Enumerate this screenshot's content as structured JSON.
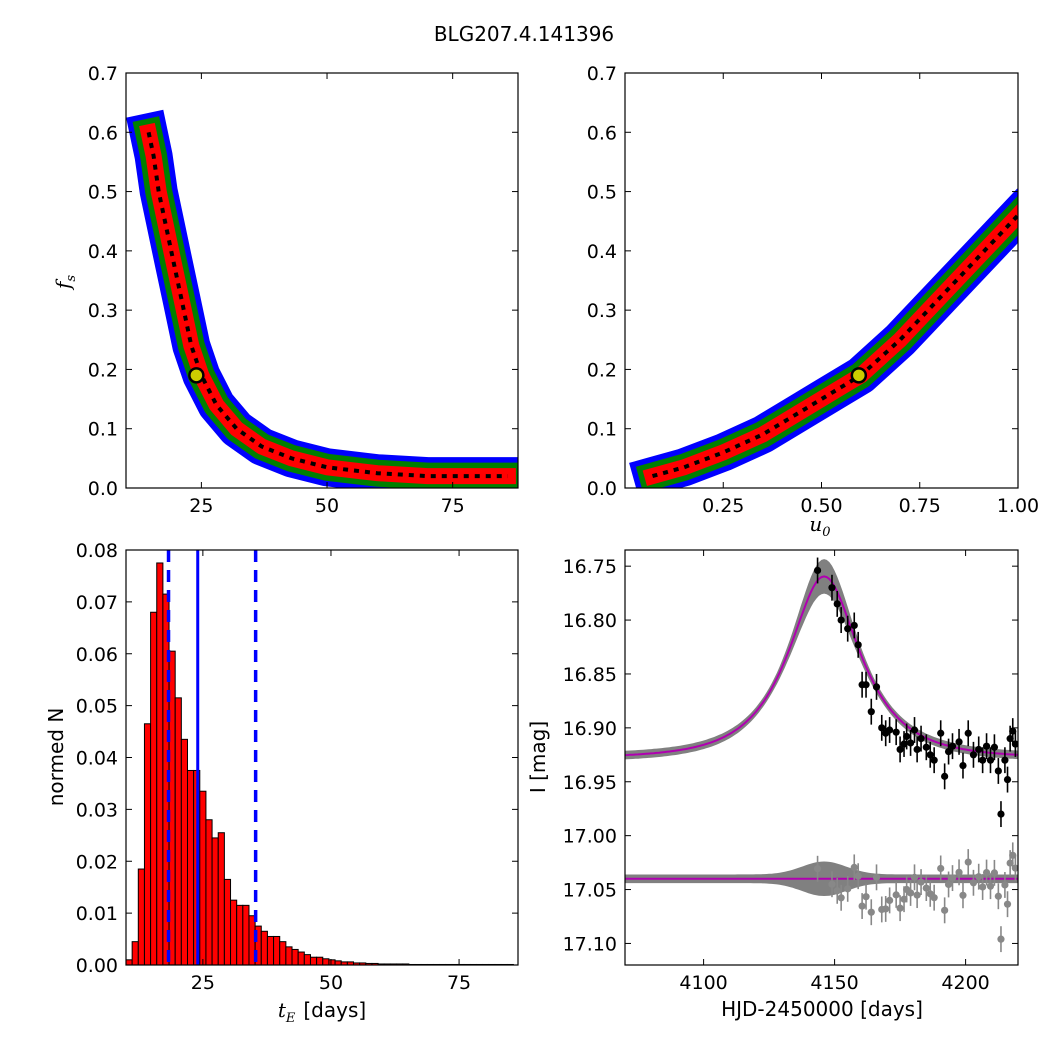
{
  "figure": {
    "title": "BLG207.4.141396"
  },
  "chart_data": [
    {
      "panel": "top-left",
      "type": "heatmap",
      "title": "",
      "xlabel": "",
      "ylabel_symbol": "f",
      "ylabel_sub": "s",
      "xlim": [
        10,
        88
      ],
      "ylim": [
        0,
        0.7
      ],
      "xticks": [
        "25",
        "50",
        "75"
      ],
      "xtick_values": [
        25,
        50,
        75
      ],
      "yticks": [
        "0.0",
        "0.1",
        "0.2",
        "0.3",
        "0.4",
        "0.5",
        "0.6",
        "0.7"
      ],
      "ytick_values": [
        0,
        0.1,
        0.2,
        0.3,
        0.4,
        0.5,
        0.6,
        0.7
      ],
      "band_colors": {
        "outer": "#0000ff",
        "middle": "#007f00",
        "inner": "#ff0000",
        "peak": "#000000"
      },
      "ridge": [
        [
          14.5,
          0.6
        ],
        [
          15.5,
          0.56
        ],
        [
          16.5,
          0.5
        ],
        [
          18,
          0.44
        ],
        [
          19.5,
          0.38
        ],
        [
          21,
          0.32
        ],
        [
          23,
          0.24
        ],
        [
          25,
          0.19
        ],
        [
          28,
          0.14
        ],
        [
          32,
          0.1
        ],
        [
          37,
          0.07
        ],
        [
          43,
          0.05
        ],
        [
          50,
          0.035
        ],
        [
          60,
          0.025
        ],
        [
          70,
          0.02
        ],
        [
          86,
          0.02
        ]
      ],
      "best_fit": {
        "x": 24,
        "y": 0.19
      },
      "best_fit_color": "#cccc00"
    },
    {
      "panel": "top-right",
      "type": "heatmap",
      "title": "",
      "xlabel_symbol": "u",
      "xlabel_sub": "0",
      "ylabel": "",
      "xlim": [
        0,
        1.0
      ],
      "ylim": [
        0,
        0.7
      ],
      "xticks": [
        "0.25",
        "0.50",
        "0.75",
        "1.00"
      ],
      "xtick_values": [
        0.25,
        0.5,
        0.75,
        1.0
      ],
      "yticks": [
        "0.0",
        "0.1",
        "0.2",
        "0.3",
        "0.4",
        "0.5",
        "0.6",
        "0.7"
      ],
      "ytick_values": [
        0,
        0.1,
        0.2,
        0.3,
        0.4,
        0.5,
        0.6,
        0.7
      ],
      "band_colors": {
        "outer": "#0000ff",
        "middle": "#007f00",
        "inner": "#ff0000",
        "peak": "#000000"
      },
      "ridge": [
        [
          0.07,
          0.02
        ],
        [
          0.15,
          0.035
        ],
        [
          0.25,
          0.06
        ],
        [
          0.35,
          0.09
        ],
        [
          0.45,
          0.13
        ],
        [
          0.55,
          0.17
        ],
        [
          0.6,
          0.19
        ],
        [
          0.7,
          0.25
        ],
        [
          0.8,
          0.32
        ],
        [
          0.9,
          0.39
        ],
        [
          1.0,
          0.46
        ]
      ],
      "best_fit": {
        "x": 0.595,
        "y": 0.19
      },
      "best_fit_color": "#cccc00"
    },
    {
      "panel": "bottom-left",
      "type": "bar",
      "title": "",
      "xlabel_symbol": "t",
      "xlabel_sub": "E",
      "xlabel_unit": "[days]",
      "ylabel": "normed N",
      "xlim": [
        10,
        86.5
      ],
      "ylim": [
        0,
        0.08
      ],
      "xticks": [
        "25",
        "50",
        "75"
      ],
      "xtick_values": [
        25,
        50,
        75
      ],
      "yticks": [
        "0.00",
        "0.01",
        "0.02",
        "0.03",
        "0.04",
        "0.05",
        "0.06",
        "0.07",
        "0.08"
      ],
      "ytick_values": [
        0,
        0.01,
        0.02,
        0.03,
        0.04,
        0.05,
        0.06,
        0.07,
        0.08
      ],
      "bar_color": "#ff0000",
      "bin_start": 10,
      "bin_width": 1.2,
      "values": [
        0.001,
        0.0045,
        0.0185,
        0.0465,
        0.068,
        0.0775,
        0.0715,
        0.0605,
        0.0515,
        0.0435,
        0.0375,
        0.0375,
        0.0335,
        0.028,
        0.0245,
        0.0255,
        0.0165,
        0.0125,
        0.0115,
        0.0115,
        0.0095,
        0.0075,
        0.0065,
        0.0055,
        0.0055,
        0.0045,
        0.0035,
        0.003,
        0.0025,
        0.002,
        0.0015,
        0.0015,
        0.0012,
        0.001,
        0.0008,
        0.0006,
        0.0006,
        0.0004,
        0.0004,
        0.0003,
        0.0003,
        0.0002,
        0.0002,
        0.0002,
        0.0002,
        0.0002,
        0.0001,
        0.0001,
        0.0001,
        0.0001,
        0.0001,
        0.0001,
        0.0001,
        0.0001,
        0.0001,
        0.0001,
        0.0001,
        0.0001,
        0.0001,
        0.0001,
        0.0001,
        0.0001,
        0.0001
      ],
      "median": 24,
      "lower": 18.3,
      "upper": 35.3,
      "line_color": "#0000ff"
    },
    {
      "panel": "bottom-right",
      "type": "scatter",
      "title": "",
      "xlabel": "HJD-2450000 [days]",
      "ylabel": "I [mag]",
      "xlim": [
        4070,
        4220
      ],
      "ylim": [
        17.12,
        16.735
      ],
      "y_inverted": true,
      "xticks": [
        "4100",
        "4150",
        "4200"
      ],
      "xtick_values": [
        4100,
        4150,
        4200
      ],
      "yticks": [
        "16.75",
        "16.80",
        "16.85",
        "16.90",
        "16.95",
        "17.00",
        "17.05",
        "17.10"
      ],
      "ytick_values": [
        16.75,
        16.8,
        16.85,
        16.9,
        16.95,
        17.0,
        17.05,
        17.1
      ],
      "model": {
        "t0": 4146,
        "tE": 24,
        "u0": 0.6,
        "fs": 0.19,
        "base": 16.928,
        "color": "#b000b0"
      },
      "band_color": "#808080",
      "residual_offset": 17.04,
      "series": [
        {
          "points": [
            [
              4143.5,
              16.754
            ],
            [
              4149,
              16.77
            ],
            [
              4151,
              16.785
            ],
            [
              4152.5,
              16.8
            ],
            [
              4155,
              16.808
            ],
            [
              4157.5,
              16.805
            ],
            [
              4159,
              16.823
            ],
            [
              4160.5,
              16.86
            ],
            [
              4162,
              16.86
            ],
            [
              4164,
              16.885
            ],
            [
              4166,
              16.862
            ],
            [
              4168,
              16.9
            ],
            [
              4169.5,
              16.905
            ],
            [
              4171,
              16.902
            ],
            [
              4173.5,
              16.904
            ],
            [
              4175,
              16.92
            ],
            [
              4176.5,
              16.915
            ],
            [
              4177.5,
              16.908
            ],
            [
              4179,
              16.914
            ],
            [
              4180.5,
              16.902
            ],
            [
              4181.5,
              16.92
            ],
            [
              4183,
              16.91
            ],
            [
              4185,
              16.918
            ],
            [
              4186.5,
              16.925
            ],
            [
              4188,
              16.93
            ],
            [
              4190.5,
              16.905
            ],
            [
              4192,
              16.945
            ],
            [
              4193.5,
              16.922
            ],
            [
              4195,
              16.917
            ],
            [
              4197.5,
              16.913
            ],
            [
              4199,
              16.935
            ],
            [
              4201,
              16.905
            ],
            [
              4203,
              16.925
            ],
            [
              4205,
              16.92
            ],
            [
              4206.5,
              16.93
            ],
            [
              4208,
              16.917
            ],
            [
              4209.5,
              16.93
            ],
            [
              4211,
              16.918
            ],
            [
              4212.5,
              16.94
            ],
            [
              4213.5,
              16.98
            ],
            [
              4215,
              16.93
            ],
            [
              4216,
              16.948
            ],
            [
              4217,
              16.91
            ],
            [
              4218,
              16.903
            ],
            [
              4219,
              16.915
            ]
          ],
          "color": "#000000"
        }
      ]
    }
  ]
}
